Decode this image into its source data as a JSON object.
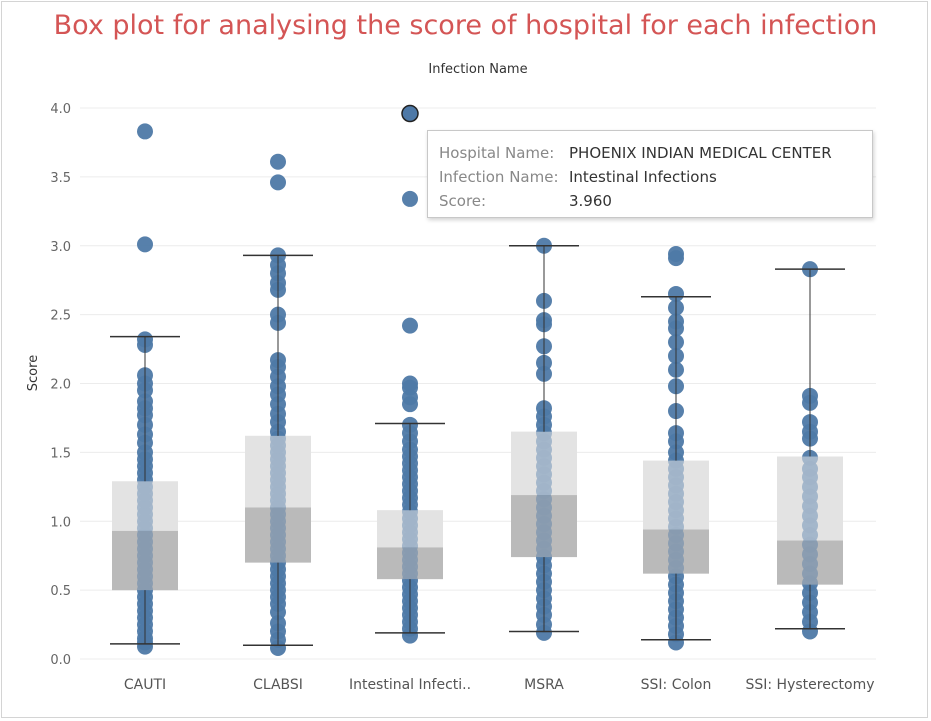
{
  "chart_data": {
    "type": "box",
    "title": "Box plot for  analysing the score of hospital for each infection",
    "xlabel": "Infection Name",
    "ylabel": "Score",
    "ylim": [
      0,
      4
    ],
    "yticks": [
      "0.0",
      "0.5",
      "1.0",
      "1.5",
      "2.0",
      "2.5",
      "3.0",
      "3.5",
      "4.0"
    ],
    "grid": "horizontal",
    "colors": {
      "point": "#4e79a7",
      "box_upper": "#e0e0e0",
      "box_lower": "#bdbdbd",
      "whisker": "#333333",
      "title": "#d45555"
    },
    "categories": [
      "CAUTI",
      "CLABSI",
      "Intestinal Infecti..",
      "MSRA",
      "SSI: Colon",
      "SSI: Hysterectomy"
    ],
    "boxes": [
      {
        "lower_whisker": 0.11,
        "q1": 0.5,
        "median": 0.93,
        "q3": 1.29,
        "upper_whisker": 2.34,
        "points": [
          0.09,
          0.12,
          0.15,
          0.2,
          0.25,
          0.3,
          0.35,
          0.4,
          0.45,
          0.5,
          0.55,
          0.6,
          0.65,
          0.7,
          0.75,
          0.8,
          0.85,
          0.9,
          0.95,
          1.0,
          1.05,
          1.1,
          1.15,
          1.2,
          1.25,
          1.3,
          1.35,
          1.4,
          1.45,
          1.5,
          1.57,
          1.63,
          1.7,
          1.77,
          1.82,
          1.87,
          1.95,
          2.0,
          2.06,
          2.28,
          2.32,
          3.01,
          3.83
        ]
      },
      {
        "lower_whisker": 0.1,
        "q1": 0.7,
        "median": 1.1,
        "q3": 1.62,
        "upper_whisker": 2.93,
        "points": [
          0.08,
          0.14,
          0.2,
          0.26,
          0.34,
          0.4,
          0.45,
          0.5,
          0.55,
          0.6,
          0.65,
          0.7,
          0.75,
          0.8,
          0.85,
          0.9,
          0.95,
          1.0,
          1.05,
          1.1,
          1.15,
          1.2,
          1.25,
          1.3,
          1.35,
          1.4,
          1.45,
          1.5,
          1.55,
          1.6,
          1.65,
          1.72,
          1.78,
          1.85,
          1.92,
          1.98,
          2.05,
          2.12,
          2.17,
          2.44,
          2.5,
          2.68,
          2.73,
          2.8,
          2.86,
          2.93,
          3.46,
          3.61
        ]
      },
      {
        "lower_whisker": 0.19,
        "q1": 0.58,
        "median": 0.81,
        "q3": 1.08,
        "upper_whisker": 1.71,
        "points": [
          0.17,
          0.22,
          0.27,
          0.32,
          0.37,
          0.42,
          0.47,
          0.52,
          0.57,
          0.62,
          0.67,
          0.72,
          0.77,
          0.82,
          0.87,
          0.92,
          0.97,
          1.02,
          1.07,
          1.12,
          1.17,
          1.22,
          1.27,
          1.32,
          1.37,
          1.42,
          1.47,
          1.52,
          1.58,
          1.64,
          1.7,
          1.85,
          1.9,
          1.97,
          2.0,
          2.42,
          3.34,
          3.96
        ]
      },
      {
        "lower_whisker": 0.2,
        "q1": 0.74,
        "median": 1.19,
        "q3": 1.65,
        "upper_whisker": 3.0,
        "points": [
          0.19,
          0.25,
          0.32,
          0.38,
          0.44,
          0.5,
          0.56,
          0.62,
          0.68,
          0.74,
          0.8,
          0.86,
          0.92,
          0.98,
          1.04,
          1.1,
          1.16,
          1.22,
          1.28,
          1.34,
          1.4,
          1.46,
          1.52,
          1.58,
          1.64,
          1.7,
          1.76,
          1.82,
          2.07,
          2.15,
          2.27,
          2.43,
          2.46,
          2.6,
          3.0
        ]
      },
      {
        "lower_whisker": 0.14,
        "q1": 0.62,
        "median": 0.94,
        "q3": 1.44,
        "upper_whisker": 2.63,
        "points": [
          0.12,
          0.18,
          0.24,
          0.3,
          0.36,
          0.42,
          0.48,
          0.54,
          0.6,
          0.66,
          0.72,
          0.78,
          0.84,
          0.9,
          0.96,
          1.02,
          1.08,
          1.14,
          1.2,
          1.26,
          1.32,
          1.38,
          1.44,
          1.5,
          1.58,
          1.64,
          1.8,
          1.98,
          2.1,
          2.2,
          2.3,
          2.4,
          2.45,
          2.55,
          2.65,
          2.91,
          2.94
        ]
      },
      {
        "lower_whisker": 0.22,
        "q1": 0.54,
        "median": 0.86,
        "q3": 1.47,
        "upper_whisker": 2.83,
        "points": [
          0.2,
          0.27,
          0.34,
          0.41,
          0.48,
          0.55,
          0.62,
          0.69,
          0.76,
          0.83,
          0.9,
          0.97,
          1.04,
          1.11,
          1.18,
          1.25,
          1.32,
          1.38,
          1.46,
          1.6,
          1.65,
          1.72,
          1.86,
          1.91,
          2.83
        ]
      }
    ],
    "highlighted_point": {
      "category_index": 2,
      "value": 3.96
    }
  },
  "tooltip": {
    "hospital_label": "Hospital Name:",
    "hospital_value": "PHOENIX INDIAN MEDICAL CENTER",
    "infection_label": "Infection Name:",
    "infection_value": "Intestinal Infections",
    "score_label": "Score:",
    "score_value": "3.960"
  }
}
